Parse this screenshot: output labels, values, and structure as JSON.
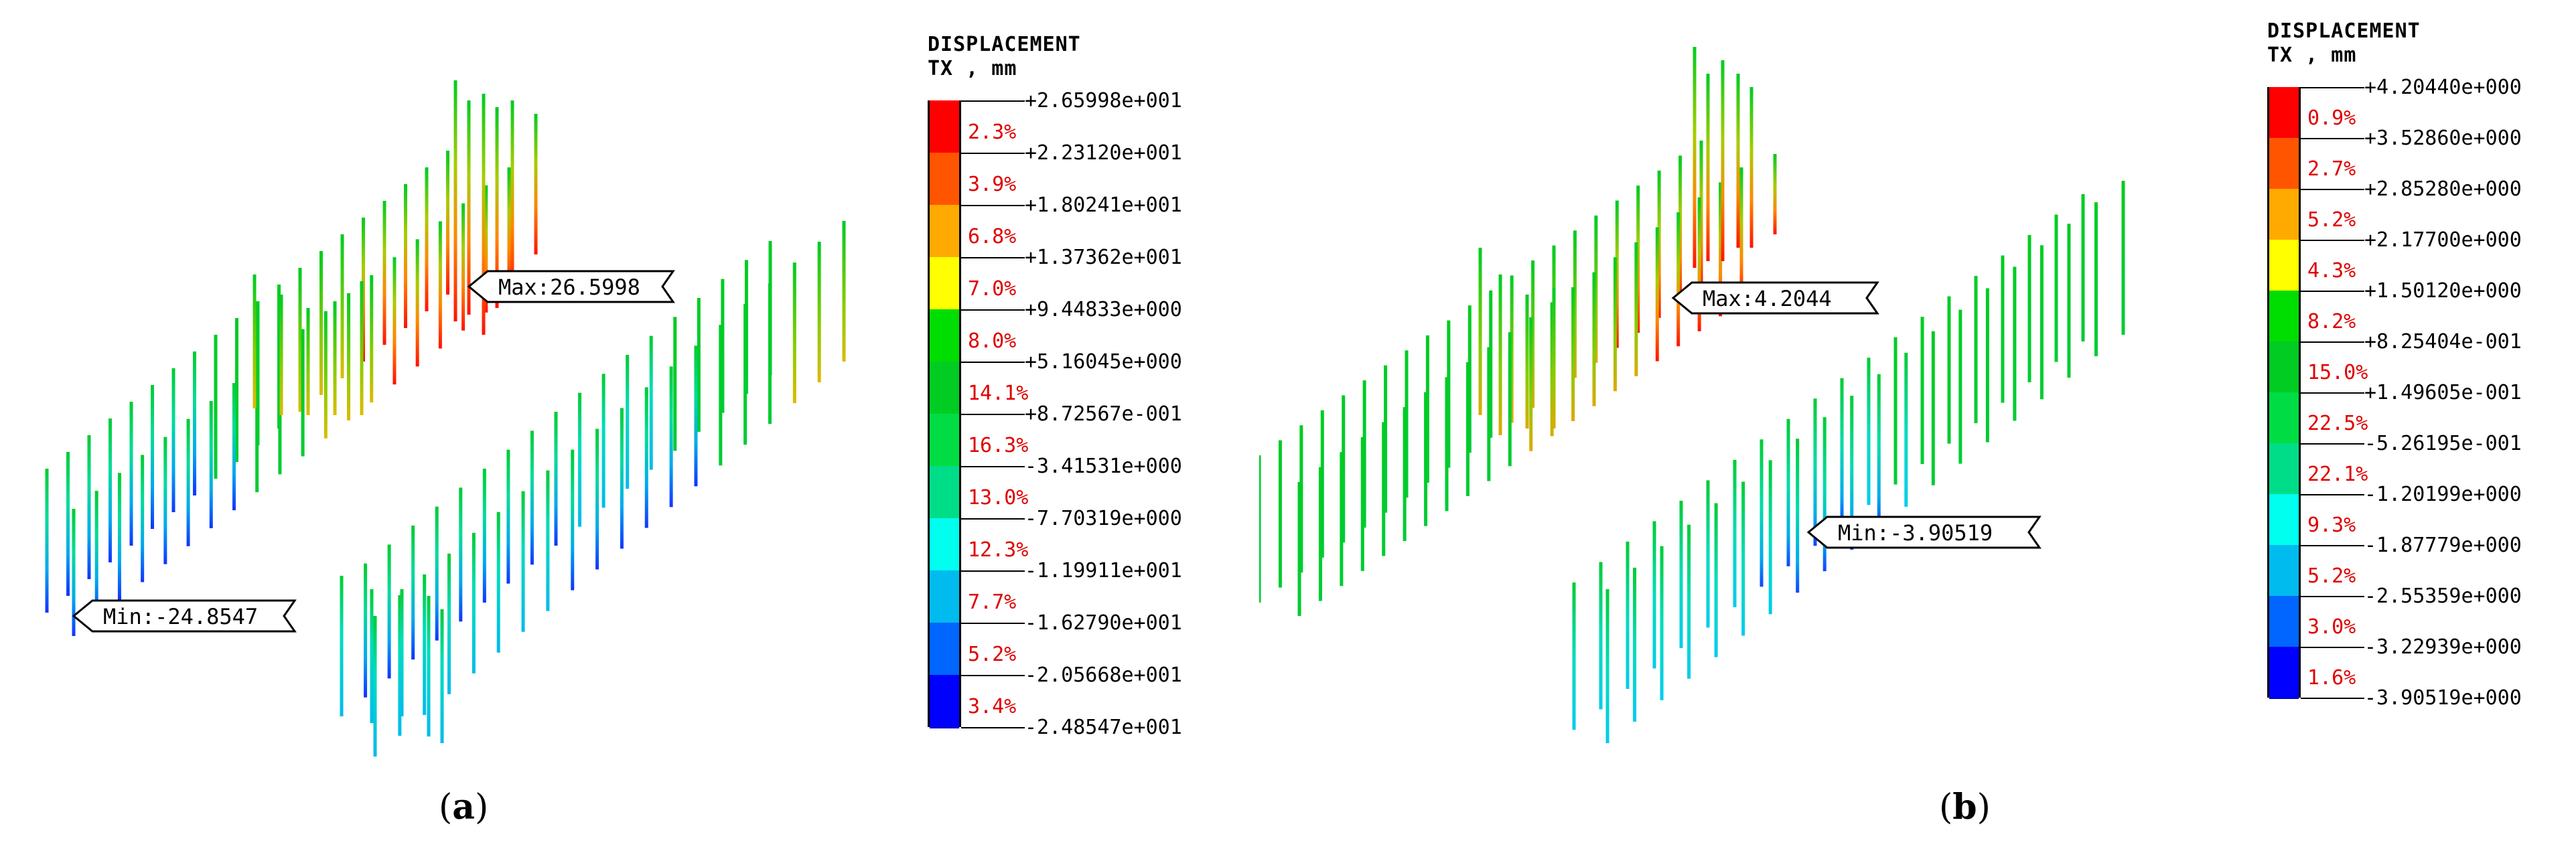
{
  "panels": [
    {
      "caption_open": "(",
      "caption_letter": "a",
      "caption_close": ")",
      "max_label": "Max:26.5998",
      "min_label": "Min:-24.8547",
      "legend": {
        "title_line1": "DISPLACEMENT",
        "title_line2": "TX , mm",
        "values": [
          "+2.65998e+001",
          "+2.23120e+001",
          "+1.80241e+001",
          "+1.37362e+001",
          "+9.44833e+000",
          "+5.16045e+000",
          "+8.72567e-001",
          "-3.41531e+000",
          "-7.70319e+000",
          "-1.19911e+001",
          "-1.62790e+001",
          "-2.05668e+001",
          "-2.48547e+001"
        ],
        "percents": [
          "2.3%",
          "3.9%",
          "6.8%",
          "7.0%",
          "8.0%",
          "14.1%",
          "16.3%",
          "13.0%",
          "12.3%",
          "7.7%",
          "5.2%",
          "3.4%"
        ],
        "colors": [
          "#ff0000",
          "#ff5500",
          "#ffaa00",
          "#ffff00",
          "#00dd00",
          "#00cc22",
          "#00dd44",
          "#00dd88",
          "#00ffee",
          "#00bbee",
          "#0066ff",
          "#0000ff"
        ]
      }
    },
    {
      "caption_open": "(",
      "caption_letter": "b",
      "caption_close": ")",
      "max_label": "Max:4.2044",
      "min_label": "Min:-3.90519",
      "legend": {
        "title_line1": "DISPLACEMENT",
        "title_line2": "TX , mm",
        "values": [
          "+4.20440e+000",
          "+3.52860e+000",
          "+2.85280e+000",
          "+2.17700e+000",
          "+1.50120e+000",
          "+8.25404e-001",
          "+1.49605e-001",
          "-5.26195e-001",
          "-1.20199e+000",
          "-1.87779e+000",
          "-2.55359e+000",
          "-3.22939e+000",
          "-3.90519e+000"
        ],
        "percents": [
          "0.9%",
          "2.7%",
          "5.2%",
          "4.3%",
          "8.2%",
          "15.0%",
          "22.5%",
          "22.1%",
          "9.3%",
          "5.2%",
          "3.0%",
          "1.6%"
        ],
        "colors": [
          "#ff0000",
          "#ff5500",
          "#ffaa00",
          "#ffff00",
          "#00dd00",
          "#00cc22",
          "#00dd44",
          "#00dd88",
          "#00ffee",
          "#00bbee",
          "#0066ff",
          "#0000ff"
        ]
      }
    }
  ]
}
